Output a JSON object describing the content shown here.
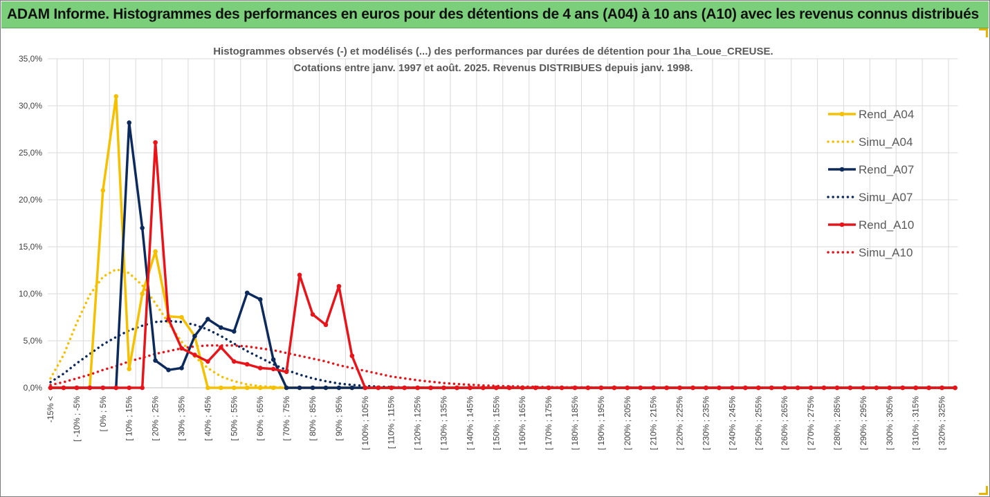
{
  "banner_title": "ADAM Informe. Histogrammes des performances en euros pour des détentions de 4 ans (A04) à 10 ans (A10) avec les revenus connus distribués",
  "colors": {
    "banner_bg": "#7bcf7b",
    "A04": "#f5c000",
    "A07": "#0d2a5c",
    "A10": "#e8141a",
    "grid": "#d9d9d9"
  },
  "chart_data": {
    "type": "line",
    "title": "Histogrammes observés (-) et modélisés (...) des performances par durées de détention pour 1ha_Loue_CREUSE.",
    "subtitle": "Cotations entre janv. 1997 et août. 2025. Revenus DISTRIBUES depuis janv. 1998.",
    "ylim": [
      0,
      35
    ],
    "yticks": [
      "0,0%",
      "5,0%",
      "10,0%",
      "15,0%",
      "20,0%",
      "25,0%",
      "30,0%",
      "35,0%"
    ],
    "grid": true,
    "legend_position": "right",
    "x_labels": [
      "-15% <",
      "[ -10% ; -5%",
      "[ 0% ; 5%",
      "[ 10% ; 15%",
      "[ 20% ; 25%",
      "[ 30% ; 35%",
      "[ 40% ; 45%",
      "[ 50% ; 55%",
      "[ 60% ; 65%",
      "[ 70% ; 75%",
      "[ 80% ; 85%",
      "[ 90% ; 95%",
      "[ 100% ; 105%",
      "[ 110% ; 115%",
      "[ 120% ; 125%",
      "[ 130% ; 135%",
      "[ 140% ; 145%",
      "[ 150% ; 155%",
      "[ 160% ; 165%",
      "[ 170% ; 175%",
      "[ 180% ; 185%",
      "[ 190% ; 195%",
      "[ 200% ; 205%",
      "[ 210% ; 215%",
      "[ 220% ; 225%",
      "[ 230% ; 235%",
      "[ 240% ; 245%",
      "[ 250% ; 255%",
      "[ 260% ; 265%",
      "[ 270% ; 275%",
      "[ 280% ; 285%",
      "[ 290% ; 295%",
      "[ 300% ; 305%",
      "[ 310% ; 315%",
      "[ 320% ; 325%"
    ],
    "series": [
      {
        "name": "Rend_A04",
        "style": "solid",
        "color": "#f5c000",
        "values": [
          0,
          0,
          0,
          0,
          21,
          31,
          2,
          10,
          14.5,
          7.6,
          7.5,
          5.5,
          0,
          0,
          0,
          0,
          0,
          0,
          0,
          0,
          0,
          0,
          0,
          0,
          0,
          0,
          0,
          0,
          0,
          0,
          0,
          0,
          0,
          0,
          0,
          0,
          0,
          0,
          0,
          0,
          0,
          0,
          0,
          0,
          0,
          0,
          0,
          0,
          0,
          0,
          0,
          0,
          0,
          0,
          0,
          0,
          0,
          0,
          0,
          0,
          0,
          0,
          0,
          0,
          0,
          0,
          0,
          0,
          0,
          0
        ]
      },
      {
        "name": "Simu_A04",
        "style": "dotted",
        "color": "#f5c000",
        "values": [
          1.0,
          3.5,
          6.9,
          9.9,
          11.8,
          12.6,
          12.2,
          10.9,
          9.0,
          6.9,
          4.9,
          3.3,
          2.1,
          1.2,
          0.7,
          0.35,
          0.17,
          0.08,
          0.03,
          0.01,
          0,
          0,
          0,
          0,
          0,
          0,
          0,
          0,
          0,
          0,
          0,
          0,
          0,
          0,
          0,
          0,
          0,
          0,
          0,
          0,
          0,
          0,
          0,
          0,
          0,
          0,
          0,
          0,
          0,
          0,
          0,
          0,
          0,
          0,
          0,
          0,
          0,
          0,
          0,
          0,
          0,
          0,
          0,
          0,
          0,
          0,
          0,
          0,
          0,
          0
        ]
      },
      {
        "name": "Rend_A07",
        "style": "solid",
        "color": "#0d2a5c",
        "values": [
          0,
          0,
          0,
          0,
          0,
          0,
          28.2,
          17,
          2.9,
          1.9,
          2.1,
          5.5,
          7.3,
          6.4,
          6.0,
          10.1,
          9.4,
          3,
          0,
          0,
          0,
          0,
          0,
          0,
          0,
          0,
          0,
          0,
          0,
          0,
          0,
          0,
          0,
          0,
          0,
          0,
          0,
          0,
          0,
          0,
          0,
          0,
          0,
          0,
          0,
          0,
          0,
          0,
          0,
          0,
          0,
          0,
          0,
          0,
          0,
          0,
          0,
          0,
          0,
          0,
          0,
          0,
          0,
          0,
          0,
          0,
          0,
          0,
          0,
          0
        ]
      },
      {
        "name": "Simu_A07",
        "style": "dotted",
        "color": "#0d2a5c",
        "values": [
          0.6,
          1.5,
          2.6,
          3.6,
          4.6,
          5.4,
          6.1,
          6.6,
          7.0,
          7.1,
          7.0,
          6.7,
          6.2,
          5.5,
          4.7,
          3.9,
          3.2,
          2.5,
          1.9,
          1.4,
          1.0,
          0.7,
          0.45,
          0.3,
          0.2,
          0.12,
          0.07,
          0.04,
          0.02,
          0.01,
          0,
          0,
          0,
          0,
          0,
          0,
          0,
          0,
          0,
          0,
          0,
          0,
          0,
          0,
          0,
          0,
          0,
          0,
          0,
          0,
          0,
          0,
          0,
          0,
          0,
          0,
          0,
          0,
          0,
          0,
          0,
          0,
          0,
          0,
          0,
          0,
          0,
          0,
          0,
          0
        ]
      },
      {
        "name": "Rend_A10",
        "style": "solid",
        "color": "#e8141a",
        "values": [
          0,
          0,
          0,
          0,
          0,
          0,
          0,
          0,
          26.1,
          7.3,
          4.2,
          3.5,
          2.8,
          4.3,
          2.8,
          2.5,
          2.1,
          2.0,
          1.7,
          12,
          7.8,
          6.7,
          10.8,
          3.4,
          0,
          0,
          0,
          0,
          0,
          0,
          0,
          0,
          0,
          0,
          0,
          0,
          0,
          0,
          0,
          0,
          0,
          0,
          0,
          0,
          0,
          0,
          0,
          0,
          0,
          0,
          0,
          0,
          0,
          0,
          0,
          0,
          0,
          0,
          0,
          0,
          0,
          0,
          0,
          0,
          0,
          0,
          0,
          0,
          0,
          0
        ]
      },
      {
        "name": "Simu_A10",
        "style": "dotted",
        "color": "#e8141a",
        "values": [
          0.3,
          0.6,
          1.0,
          1.4,
          1.9,
          2.3,
          2.8,
          3.2,
          3.6,
          3.9,
          4.2,
          4.4,
          4.5,
          4.5,
          4.5,
          4.4,
          4.2,
          4.0,
          3.7,
          3.4,
          3.1,
          2.8,
          2.4,
          2.1,
          1.8,
          1.5,
          1.2,
          1.0,
          0.8,
          0.65,
          0.5,
          0.4,
          0.32,
          0.25,
          0.2,
          0.16,
          0.13,
          0.1,
          0.08,
          0.06,
          0.05,
          0.04,
          0.03,
          0.02,
          0.02,
          0.01,
          0.01,
          0.01,
          0,
          0,
          0,
          0,
          0,
          0,
          0,
          0,
          0,
          0,
          0,
          0,
          0,
          0,
          0,
          0,
          0,
          0,
          0,
          0,
          0,
          0
        ]
      }
    ]
  }
}
